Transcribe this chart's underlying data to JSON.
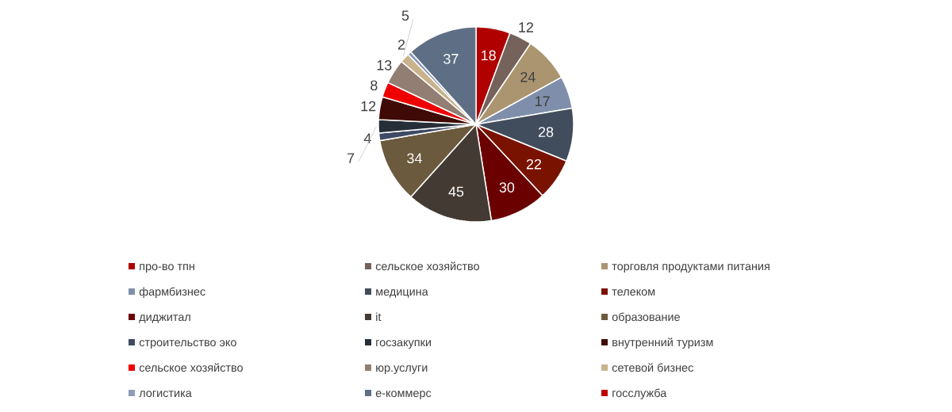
{
  "chart_data": {
    "type": "pie",
    "categories": [
      "про-во тпн",
      "сельское хозяйство",
      "торговля продуктами питания",
      "фармбизнес",
      "медицина",
      "телеком",
      "диджитал",
      "it",
      "образование",
      "строительство эко",
      "госзакупки",
      "внутренний туризм",
      "сельское хозяйство",
      "юр.услуги",
      "сетевой бизнес",
      "логистика",
      "е-коммерс",
      "госслужба"
    ],
    "values": [
      18,
      12,
      24,
      17,
      28,
      22,
      30,
      45,
      34,
      4,
      7,
      12,
      8,
      13,
      5,
      2,
      37,
      null
    ],
    "colors": [
      "#b00000",
      "#75625a",
      "#ab9570",
      "#7f8fab",
      "#414d5c",
      "#7a1200",
      "#6b0000",
      "#433a33",
      "#6b5a3d",
      "#3f4a63",
      "#262f38",
      "#3f0a05",
      "#ee0000",
      "#927e72",
      "#c9b38c",
      "#8d9bb8",
      "#5e6f85",
      "#c00000"
    ],
    "data_labels": true,
    "legend": "bottom"
  }
}
